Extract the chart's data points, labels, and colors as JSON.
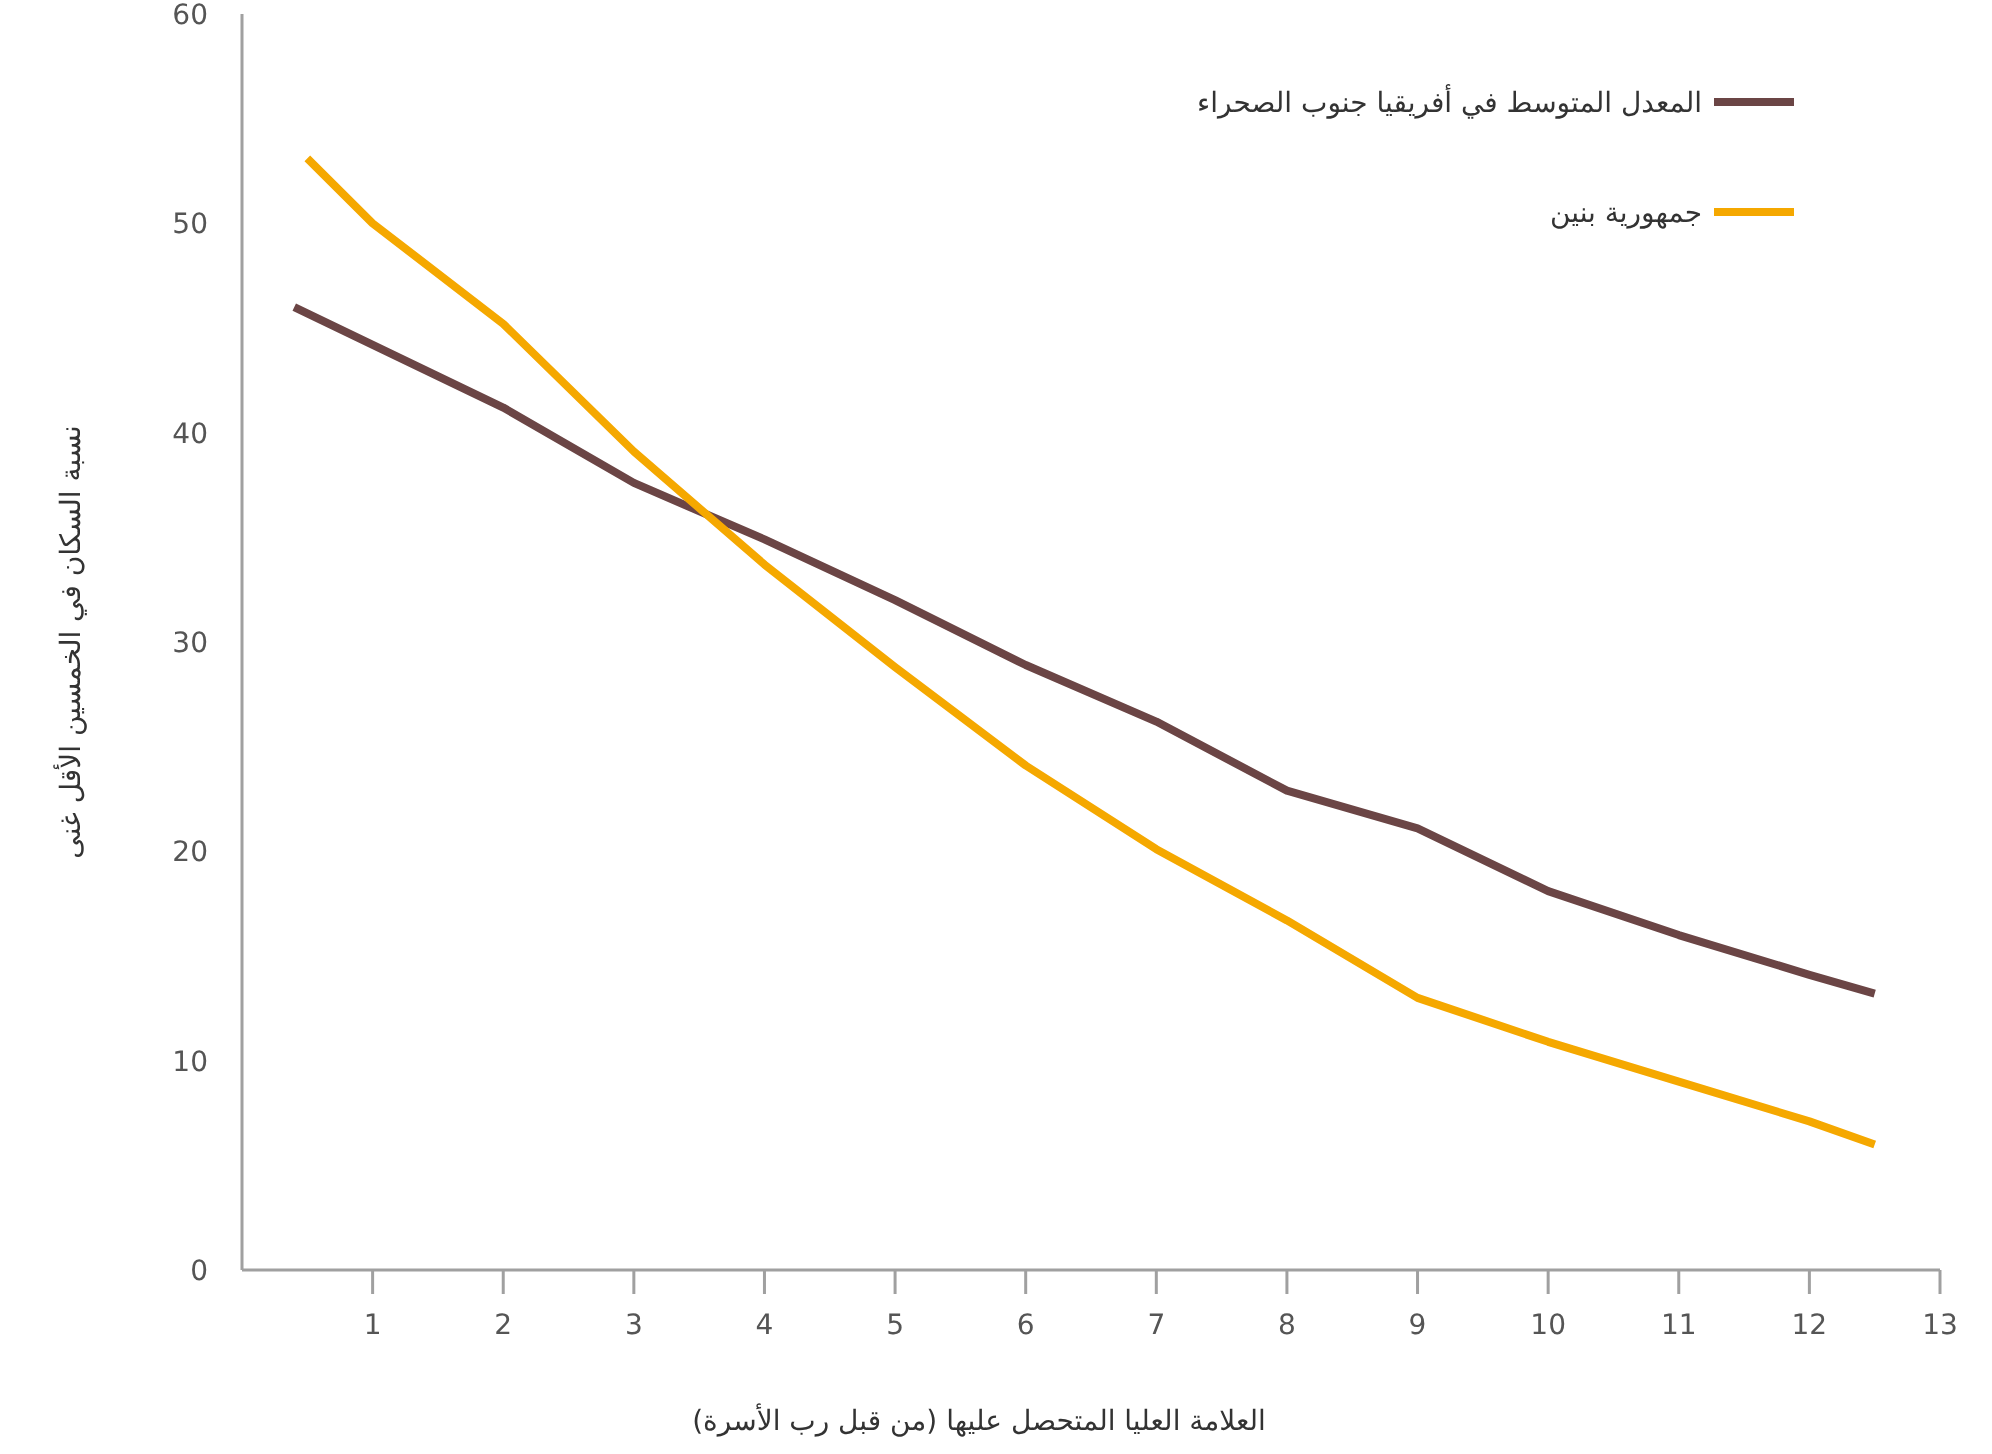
{
  "chart_data": {
    "type": "line",
    "xlabel": "العلامة العليا المتحصل عليها (من قبل رب الأسرة)",
    "ylabel": "نسبة السكان في الخمسين الأقل غنى",
    "xlim": [
      0,
      13
    ],
    "ylim": [
      0,
      60
    ],
    "xticks": [
      1,
      2,
      3,
      4,
      5,
      6,
      7,
      8,
      9,
      10,
      11,
      12,
      13
    ],
    "yticks": [
      0,
      10,
      20,
      30,
      40,
      50,
      60
    ],
    "grid": false,
    "legend": "top right",
    "marker": "none",
    "line_style": "solid",
    "series": [
      {
        "name": "المعدل المتوسط في أفريقيا جنوب الصحراء",
        "color": "#6b4545",
        "x": [
          0.4,
          2,
          3,
          4,
          5,
          6,
          7,
          8,
          9,
          10,
          11,
          12,
          12.5
        ],
        "values": [
          46,
          41.2,
          37.6,
          34.9,
          32,
          28.9,
          26.2,
          22.9,
          21.1,
          18.1,
          16,
          14.1,
          13.2
        ]
      },
      {
        "name": "جمهورية بنين",
        "color": "#f5a800",
        "x": [
          0.5,
          1,
          2,
          3,
          4,
          5,
          6,
          7,
          8,
          9,
          10,
          11,
          12,
          12.5
        ],
        "values": [
          53.1,
          50,
          45.2,
          39.1,
          33.7,
          28.8,
          24.1,
          20.1,
          16.7,
          13,
          10.9,
          9,
          7.1,
          6
        ]
      }
    ]
  }
}
